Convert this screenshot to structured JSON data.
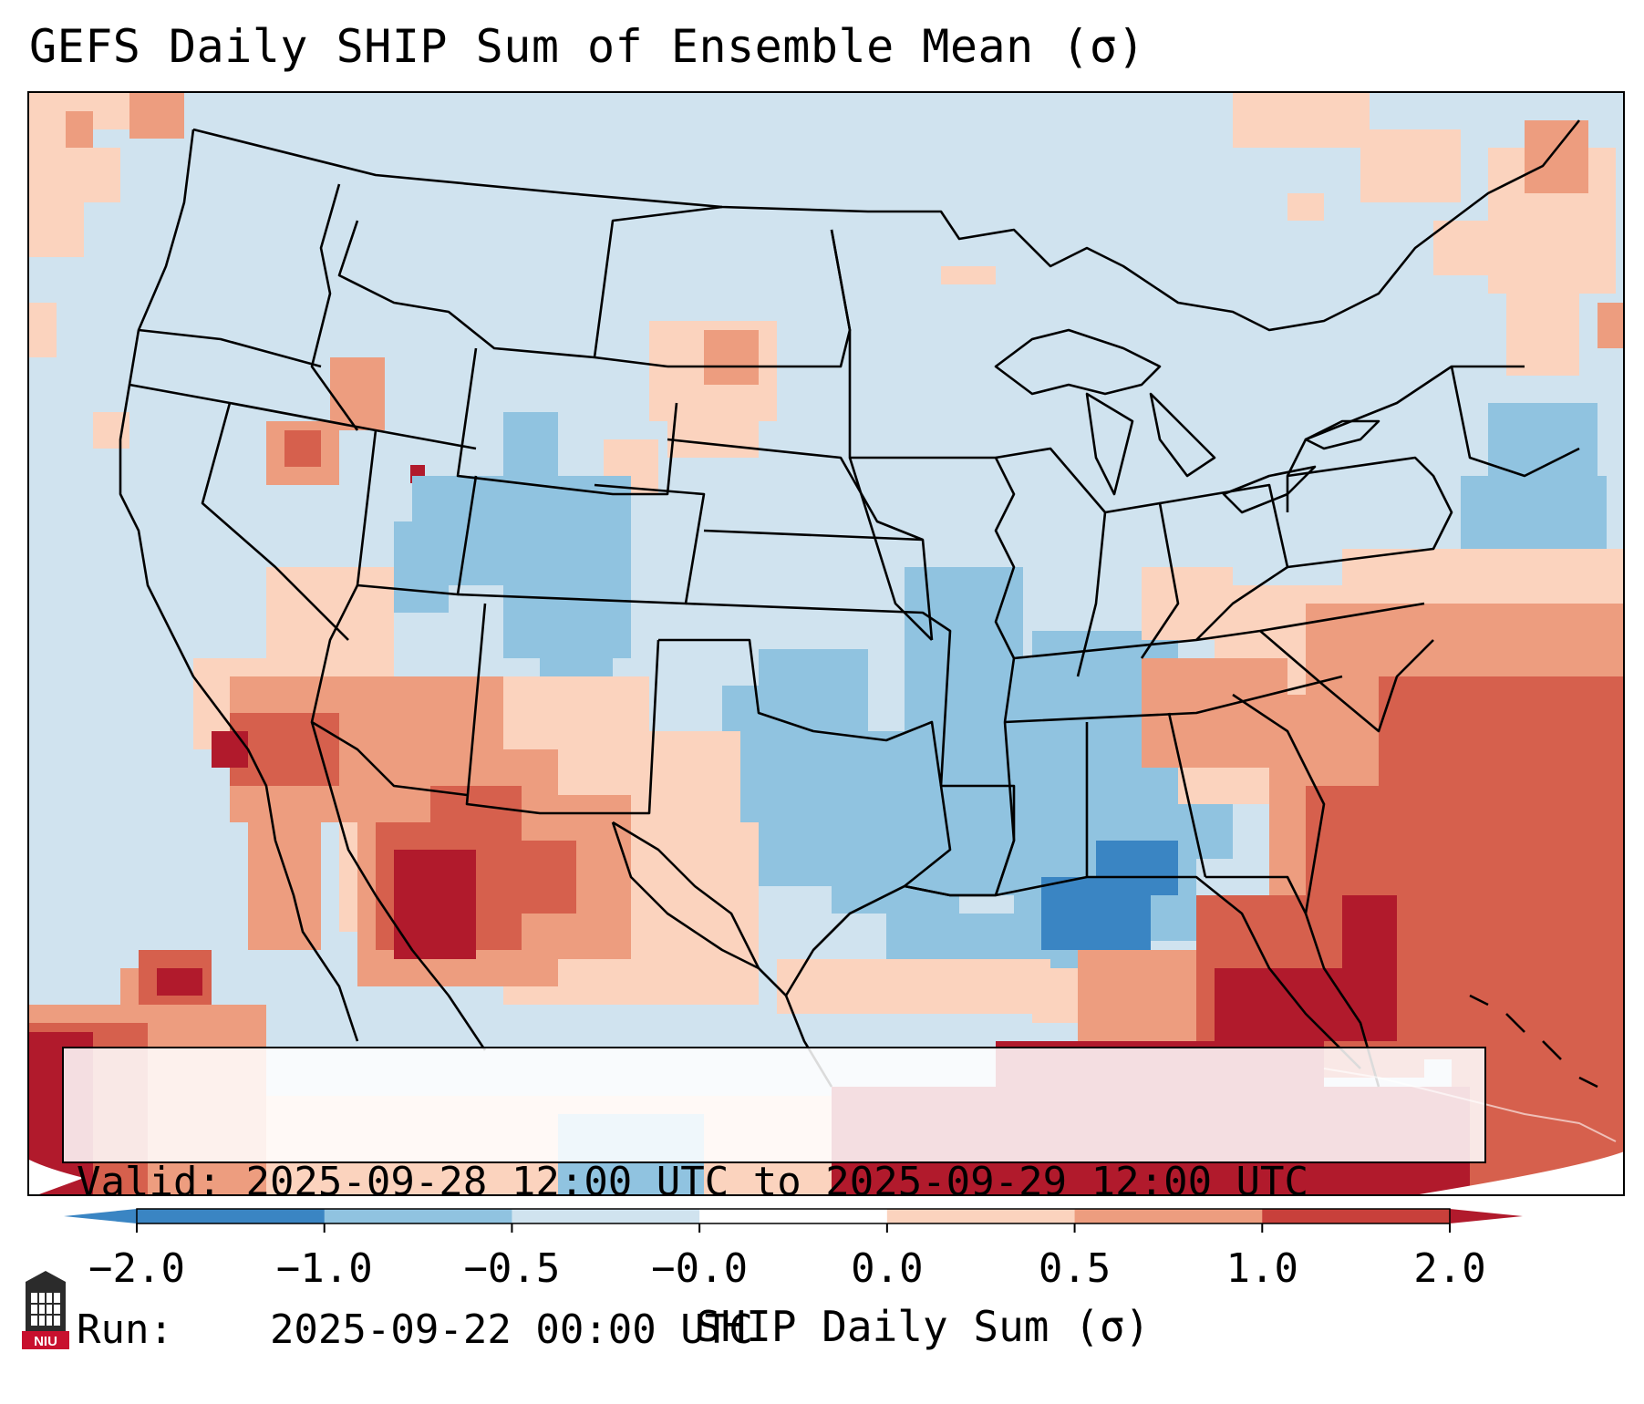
{
  "title": "GEFS Daily SHIP Sum of Ensemble Mean (σ)",
  "info": {
    "valid_label": "Valid:",
    "valid_value": "2025-09-28 12:00 UTC to 2025-09-29 12:00 UTC",
    "run_label": "Run:",
    "run_value": "2025-09-22 00:00 UTC"
  },
  "colorbar": {
    "label": "SHIP Daily Sum (σ)",
    "ticks": [
      "−2.0",
      "−1.0",
      "−0.5",
      "−0.0",
      "0.0",
      "0.5",
      "1.0",
      "2.0"
    ],
    "bin_colors": [
      "#3a85c3",
      "#90c3e0",
      "#d0e3ef",
      "#ffffff",
      "#fbd3be",
      "#ed9d7f",
      "#c8403b"
    ],
    "low_extend_color": "#3a85c3",
    "high_extend_color": "#b11a2c"
  },
  "logo": {
    "text": "NIU",
    "color": "#c8102e"
  },
  "map": {
    "region": "Continental United States",
    "field": "SHIP daily sum standardized anomaly",
    "colors": {
      "base_light_blue": "#d0e3ef",
      "mid_blue": "#90c3e0",
      "dark_blue": "#3a85c3",
      "light_red": "#fbd3be",
      "mid_red": "#ed9d7f",
      "red": "#d6604d",
      "dark_red": "#b11a2c"
    }
  }
}
